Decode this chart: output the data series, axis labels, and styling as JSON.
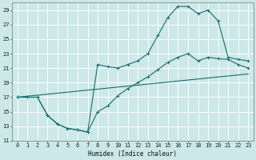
{
  "xlabel": "Humidex (Indice chaleur)",
  "background_color": "#cce8e8",
  "grid_color": "#ffffff",
  "line_color": "#1a6b6b",
  "xlim": [
    -0.5,
    23.5
  ],
  "ylim": [
    11,
    30
  ],
  "xticks": [
    0,
    1,
    2,
    3,
    4,
    5,
    6,
    7,
    8,
    9,
    10,
    11,
    12,
    13,
    14,
    15,
    16,
    17,
    18,
    19,
    20,
    21,
    22,
    23
  ],
  "yticks": [
    11,
    13,
    15,
    17,
    19,
    21,
    23,
    25,
    27,
    29
  ],
  "curve1_x": [
    0,
    1,
    2,
    3,
    4,
    5,
    6,
    7,
    8,
    9,
    10,
    11,
    12,
    13,
    14,
    15,
    16,
    17,
    18,
    19,
    20,
    21,
    22,
    23
  ],
  "curve1_y": [
    17,
    17,
    17,
    14.5,
    13.3,
    12.7,
    12.5,
    12.2,
    21.5,
    21.2,
    21.0,
    21.5,
    22.0,
    23.0,
    25.5,
    28.0,
    29.5,
    29.5,
    28.5,
    29.0,
    27.5,
    22.5,
    22.2,
    22.0
  ],
  "curve2_x": [
    0,
    1,
    2,
    3,
    4,
    5,
    6,
    7,
    8,
    9,
    10,
    11,
    12,
    13,
    14,
    15,
    16,
    17,
    18,
    19,
    20,
    21,
    22,
    23
  ],
  "curve2_y": [
    17,
    17,
    17,
    14.5,
    13.3,
    12.7,
    12.5,
    12.2,
    15.0,
    15.8,
    17.2,
    18.2,
    19.0,
    19.8,
    20.8,
    21.8,
    22.5,
    23.0,
    22.0,
    22.5,
    22.3,
    22.2,
    21.5,
    21.0
  ],
  "curve3_x": [
    0,
    23
  ],
  "curve3_y": [
    17.0,
    20.2
  ]
}
